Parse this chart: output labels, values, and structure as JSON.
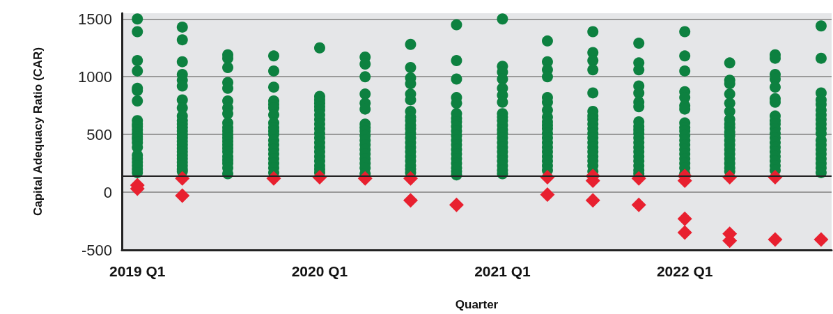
{
  "chart_data": {
    "type": "scatter",
    "xlabel": "Quarter",
    "ylabel": "Capital Adequacy Ratio (CAR)",
    "xlim": [
      "2018-12-01",
      "2022-10-22"
    ],
    "xticks": [
      {
        "value": "2019-01",
        "label": "2019 Q1"
      },
      {
        "value": "2020-01",
        "label": "2020 Q1"
      },
      {
        "value": "2021-01",
        "label": "2021 Q1"
      },
      {
        "value": "2022-01",
        "label": "2022 Q1"
      }
    ],
    "ylim": [
      -500,
      1550
    ],
    "yticks": [
      -500,
      0,
      500,
      1000,
      1500
    ],
    "grid": "y",
    "ref_lines": [
      {
        "axis": "y",
        "value": 140,
        "color": "#222222",
        "line_style": "solid"
      }
    ],
    "series": [
      {
        "color": "#0d8140",
        "marker": "circle",
        "x": [
          "2019-01",
          "2019-01",
          "2019-01",
          "2019-01",
          "2019-01",
          "2019-01",
          "2019-01",
          "2019-01",
          "2019-01",
          "2019-01",
          "2019-01",
          "2019-01",
          "2019-01",
          "2019-01",
          "2019-01",
          "2019-01",
          "2019-01",
          "2019-01",
          "2019-01",
          "2019-01",
          "2019-01",
          "2019-01",
          "2019-04",
          "2019-04",
          "2019-04",
          "2019-04",
          "2019-04",
          "2019-04",
          "2019-04",
          "2019-04",
          "2019-04",
          "2019-04",
          "2019-04",
          "2019-04",
          "2019-04",
          "2019-04",
          "2019-04",
          "2019-04",
          "2019-04",
          "2019-04",
          "2019-04",
          "2019-04",
          "2019-04",
          "2019-04",
          "2019-04",
          "2019-04",
          "2019-04",
          "2019-07",
          "2019-07",
          "2019-07",
          "2019-07",
          "2019-07",
          "2019-07",
          "2019-07",
          "2019-07",
          "2019-07",
          "2019-07",
          "2019-07",
          "2019-07",
          "2019-07",
          "2019-07",
          "2019-07",
          "2019-07",
          "2019-07",
          "2019-07",
          "2019-07",
          "2019-07",
          "2019-07",
          "2019-07",
          "2019-10",
          "2019-10",
          "2019-10",
          "2019-10",
          "2019-10",
          "2019-10",
          "2019-10",
          "2019-10",
          "2019-10",
          "2019-10",
          "2019-10",
          "2019-10",
          "2019-10",
          "2019-10",
          "2019-10",
          "2019-10",
          "2019-10",
          "2019-10",
          "2019-10",
          "2020-01",
          "2020-01",
          "2020-01",
          "2020-01",
          "2020-01",
          "2020-01",
          "2020-01",
          "2020-01",
          "2020-01",
          "2020-01",
          "2020-01",
          "2020-01",
          "2020-01",
          "2020-01",
          "2020-01",
          "2020-01",
          "2020-01",
          "2020-01",
          "2020-01",
          "2020-01",
          "2020-04",
          "2020-04",
          "2020-04",
          "2020-04",
          "2020-04",
          "2020-04",
          "2020-04",
          "2020-04",
          "2020-04",
          "2020-04",
          "2020-04",
          "2020-04",
          "2020-04",
          "2020-04",
          "2020-04",
          "2020-04",
          "2020-04",
          "2020-04",
          "2020-07",
          "2020-07",
          "2020-07",
          "2020-07",
          "2020-07",
          "2020-07",
          "2020-07",
          "2020-07",
          "2020-07",
          "2020-07",
          "2020-07",
          "2020-07",
          "2020-07",
          "2020-07",
          "2020-07",
          "2020-07",
          "2020-07",
          "2020-07",
          "2020-07",
          "2020-07",
          "2020-07",
          "2020-10",
          "2020-10",
          "2020-10",
          "2020-10",
          "2020-10",
          "2020-10",
          "2020-10",
          "2020-10",
          "2020-10",
          "2020-10",
          "2020-10",
          "2020-10",
          "2020-10",
          "2020-10",
          "2020-10",
          "2020-10",
          "2020-10",
          "2020-10",
          "2020-10",
          "2020-10",
          "2021-01",
          "2021-01",
          "2021-01",
          "2021-01",
          "2021-01",
          "2021-01",
          "2021-01",
          "2021-01",
          "2021-01",
          "2021-01",
          "2021-01",
          "2021-01",
          "2021-01",
          "2021-01",
          "2021-01",
          "2021-01",
          "2021-01",
          "2021-01",
          "2021-01",
          "2021-01",
          "2021-01",
          "2021-01",
          "2021-04",
          "2021-04",
          "2021-04",
          "2021-04",
          "2021-04",
          "2021-04",
          "2021-04",
          "2021-04",
          "2021-04",
          "2021-04",
          "2021-04",
          "2021-04",
          "2021-04",
          "2021-04",
          "2021-04",
          "2021-04",
          "2021-04",
          "2021-04",
          "2021-04",
          "2021-04",
          "2021-07",
          "2021-07",
          "2021-07",
          "2021-07",
          "2021-07",
          "2021-07",
          "2021-07",
          "2021-07",
          "2021-07",
          "2021-07",
          "2021-07",
          "2021-07",
          "2021-07",
          "2021-07",
          "2021-07",
          "2021-07",
          "2021-07",
          "2021-07",
          "2021-07",
          "2021-10",
          "2021-10",
          "2021-10",
          "2021-10",
          "2021-10",
          "2021-10",
          "2021-10",
          "2021-10",
          "2021-10",
          "2021-10",
          "2021-10",
          "2021-10",
          "2021-10",
          "2021-10",
          "2021-10",
          "2021-10",
          "2021-10",
          "2021-10",
          "2021-10",
          "2021-10",
          "2022-01",
          "2022-01",
          "2022-01",
          "2022-01",
          "2022-01",
          "2022-01",
          "2022-01",
          "2022-01",
          "2022-01",
          "2022-01",
          "2022-01",
          "2022-01",
          "2022-01",
          "2022-01",
          "2022-01",
          "2022-01",
          "2022-01",
          "2022-01",
          "2022-01",
          "2022-04",
          "2022-04",
          "2022-04",
          "2022-04",
          "2022-04",
          "2022-04",
          "2022-04",
          "2022-04",
          "2022-04",
          "2022-04",
          "2022-04",
          "2022-04",
          "2022-04",
          "2022-04",
          "2022-04",
          "2022-04",
          "2022-04",
          "2022-04",
          "2022-04",
          "2022-07",
          "2022-07",
          "2022-07",
          "2022-07",
          "2022-07",
          "2022-07",
          "2022-07",
          "2022-07",
          "2022-07",
          "2022-07",
          "2022-07",
          "2022-07",
          "2022-07",
          "2022-07",
          "2022-07",
          "2022-07",
          "2022-07",
          "2022-07",
          "2022-07",
          "2022-07",
          "2022-10",
          "2022-10",
          "2022-10",
          "2022-10",
          "2022-10",
          "2022-10",
          "2022-10",
          "2022-10",
          "2022-10",
          "2022-10",
          "2022-10",
          "2022-10",
          "2022-10",
          "2022-10",
          "2022-10",
          "2022-10",
          "2022-10",
          "2022-10",
          "2022-10"
        ],
        "values": [
          1500,
          1390,
          1140,
          1050,
          900,
          880,
          790,
          620,
          590,
          570,
          540,
          510,
          480,
          460,
          430,
          390,
          320,
          290,
          260,
          230,
          200,
          170,
          1430,
          1320,
          1130,
          1020,
          970,
          920,
          800,
          730,
          660,
          620,
          590,
          560,
          530,
          500,
          470,
          440,
          410,
          380,
          350,
          320,
          290,
          260,
          230,
          200,
          180,
          1190,
          1160,
          1080,
          950,
          900,
          790,
          730,
          680,
          600,
          560,
          530,
          500,
          470,
          440,
          410,
          380,
          350,
          310,
          280,
          250,
          210,
          160,
          1180,
          1050,
          910,
          790,
          760,
          730,
          670,
          600,
          560,
          530,
          500,
          450,
          410,
          370,
          330,
          290,
          250,
          210,
          170,
          1250,
          830,
          800,
          770,
          740,
          710,
          670,
          630,
          590,
          550,
          510,
          470,
          430,
          390,
          350,
          310,
          270,
          230,
          200,
          170,
          1170,
          1110,
          1000,
          850,
          770,
          720,
          590,
          560,
          530,
          490,
          450,
          410,
          370,
          330,
          290,
          250,
          210,
          160,
          1280,
          1080,
          990,
          940,
          850,
          800,
          700,
          650,
          620,
          580,
          550,
          510,
          470,
          430,
          390,
          350,
          310,
          270,
          230,
          200,
          170,
          1450,
          1140,
          980,
          820,
          770,
          680,
          640,
          610,
          570,
          530,
          490,
          450,
          410,
          370,
          330,
          290,
          250,
          210,
          180,
          150,
          1500,
          1090,
          1040,
          980,
          900,
          840,
          780,
          680,
          650,
          620,
          580,
          540,
          510,
          470,
          430,
          390,
          350,
          310,
          270,
          230,
          190,
          160,
          1310,
          1130,
          1060,
          1000,
          820,
          780,
          710,
          650,
          610,
          580,
          550,
          510,
          470,
          430,
          390,
          350,
          310,
          270,
          230,
          190,
          1390,
          1210,
          1140,
          1060,
          860,
          700,
          660,
          630,
          590,
          550,
          510,
          470,
          430,
          390,
          350,
          310,
          270,
          230,
          180,
          1290,
          1120,
          1060,
          920,
          860,
          780,
          740,
          610,
          570,
          540,
          510,
          470,
          430,
          390,
          350,
          310,
          270,
          230,
          190,
          160,
          1390,
          1180,
          1050,
          870,
          820,
          750,
          720,
          600,
          560,
          530,
          490,
          450,
          410,
          370,
          330,
          290,
          250,
          210,
          160,
          1120,
          970,
          940,
          850,
          770,
          700,
          630,
          590,
          560,
          520,
          490,
          450,
          410,
          370,
          330,
          290,
          250,
          210,
          180,
          1190,
          1160,
          1020,
          980,
          910,
          810,
          780,
          660,
          620,
          590,
          550,
          510,
          470,
          430,
          390,
          350,
          310,
          270,
          230,
          190,
          1440,
          1160,
          860,
          800,
          760,
          710,
          670,
          630,
          590,
          550,
          510,
          450,
          410,
          370,
          330,
          290,
          250,
          210,
          170
        ]
      },
      {
        "color": "#e8202f",
        "marker": "diamond",
        "x": [
          "2019-01",
          "2019-01",
          "2019-04",
          "2019-04",
          "2019-10",
          "2020-01",
          "2020-04",
          "2020-07",
          "2020-07",
          "2020-10",
          "2021-04",
          "2021-04",
          "2021-07",
          "2021-07",
          "2021-07",
          "2021-10",
          "2021-10",
          "2022-01",
          "2022-01",
          "2022-01",
          "2022-01",
          "2022-04",
          "2022-04",
          "2022-04",
          "2022-07",
          "2022-07",
          "2022-10"
        ],
        "values": [
          60,
          30,
          120,
          -30,
          120,
          130,
          120,
          120,
          -70,
          -110,
          130,
          -20,
          140,
          100,
          -70,
          120,
          -110,
          140,
          100,
          -230,
          -350,
          130,
          -360,
          -420,
          130,
          -410,
          -410
        ]
      }
    ]
  }
}
